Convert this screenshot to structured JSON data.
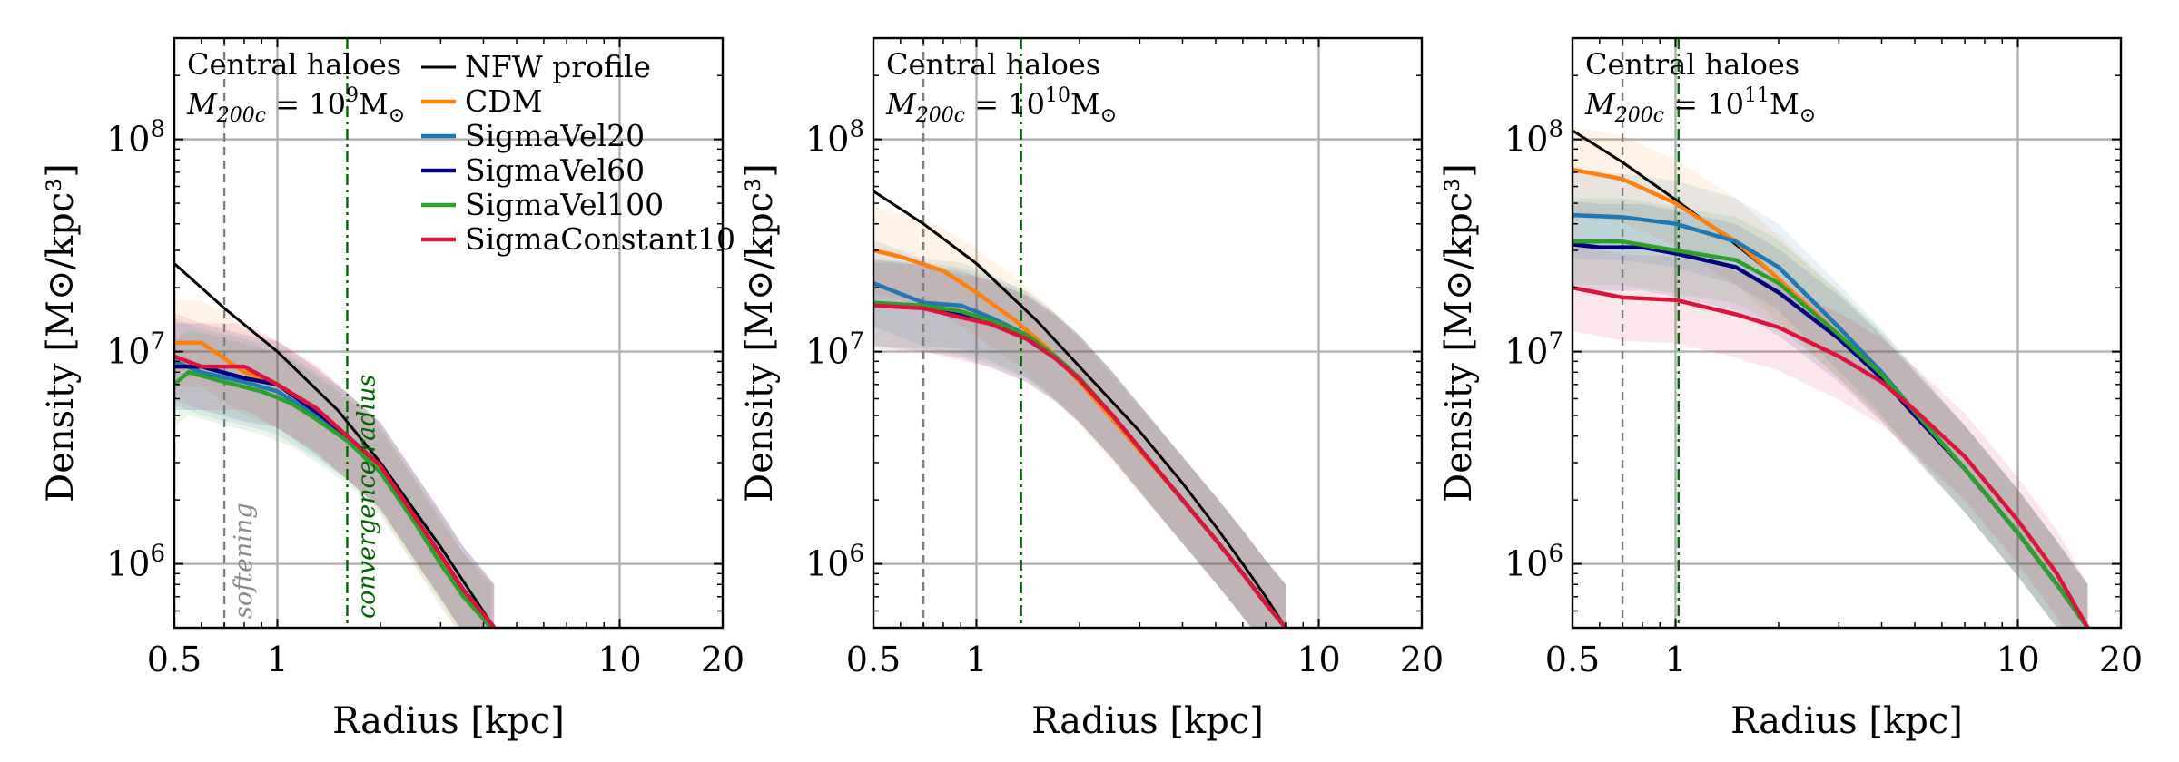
{
  "chart_data": [
    {
      "type": "line",
      "annotation": {
        "line1": "Central haloes",
        "mass_prefix": "M",
        "mass_sub": "200c",
        "mass_eq": " = 10",
        "mass_exp": "9",
        "mass_unit": "M",
        "mass_unit_sym": "⊙"
      },
      "xlabel": "Radius [kpc]",
      "ylabel": "Density [M⊙/kpc³]",
      "xlim": [
        0.5,
        20
      ],
      "ylim": [
        500000,
        300000000
      ],
      "xticks": [
        {
          "v": 0.5,
          "label": "0.5"
        },
        {
          "v": 1,
          "label": "1"
        },
        {
          "v": 10,
          "label": "10"
        },
        {
          "v": 20,
          "label": "20"
        }
      ],
      "yticks": [
        {
          "v": 1000000,
          "base": "10",
          "exp": "6"
        },
        {
          "v": 10000000,
          "base": "10",
          "exp": "7"
        },
        {
          "v": 100000000,
          "base": "10",
          "exp": "8"
        }
      ],
      "grid": true,
      "softening_radius": 0.7,
      "softening_label": "softening",
      "convergence_radius": 1.6,
      "convergence_label": "convergence radius",
      "show_legend": true,
      "series": [
        {
          "name": "NFW profile",
          "color": "#000000",
          "x": [
            0.5,
            0.7,
            1.0,
            1.5,
            2.0,
            3.0,
            4.3
          ],
          "y": [
            26000000,
            16000000,
            10000000,
            5300000,
            3000000,
            1200000,
            500000
          ]
        },
        {
          "name": "CDM",
          "color": "#ff7f0e",
          "x": [
            0.5,
            0.6,
            0.8,
            1.0,
            1.3,
            1.6,
            2.0,
            2.5,
            3.0,
            3.5,
            4.0,
            4.3
          ],
          "y": [
            11000000,
            11000000,
            8000000,
            7000000,
            5300000,
            4000000,
            2800000,
            1600000,
            1050000,
            700000,
            560000,
            500000
          ]
        },
        {
          "name": "SigmaVel20",
          "color": "#1f77b4",
          "x": [
            0.5,
            0.6,
            0.8,
            1.0,
            1.3,
            1.6,
            2.0,
            2.5,
            3.0,
            3.5,
            4.0,
            4.3
          ],
          "y": [
            9000000,
            8000000,
            7200000,
            6500000,
            5000000,
            4000000,
            2900000,
            1700000,
            1100000,
            750000,
            580000,
            500000
          ]
        },
        {
          "name": "SigmaVel60",
          "color": "#000080",
          "x": [
            0.5,
            0.6,
            0.8,
            1.0,
            1.3,
            1.6,
            2.0,
            2.5,
            3.0,
            3.5,
            4.0,
            4.3
          ],
          "y": [
            8500000,
            8500000,
            7500000,
            7000000,
            5200000,
            4000000,
            2900000,
            1700000,
            1100000,
            750000,
            580000,
            500000
          ]
        },
        {
          "name": "SigmaVel100",
          "color": "#2ca02c",
          "x": [
            0.5,
            0.55,
            0.7,
            0.9,
            1.1,
            1.3,
            1.6,
            2.0,
            2.5,
            3.0,
            3.5,
            4.0,
            4.2
          ],
          "y": [
            7000000,
            8000000,
            7200000,
            6500000,
            5700000,
            4800000,
            3800000,
            2700000,
            1600000,
            1000000,
            700000,
            550000,
            500000
          ]
        },
        {
          "name": "SigmaConstant10",
          "color": "#dc143c",
          "x": [
            0.5,
            0.6,
            0.8,
            1.0,
            1.3,
            1.6,
            2.0,
            2.5,
            3.0,
            3.5,
            4.0,
            4.3
          ],
          "y": [
            9500000,
            8500000,
            8500000,
            7000000,
            5400000,
            4000000,
            2900000,
            1700000,
            1100000,
            750000,
            580000,
            500000
          ]
        }
      ]
    },
    {
      "type": "line",
      "annotation": {
        "line1": "Central haloes",
        "mass_prefix": "M",
        "mass_sub": "200c",
        "mass_eq": " = 10",
        "mass_exp": "10",
        "mass_unit": "M",
        "mass_unit_sym": "⊙"
      },
      "xlabel": "Radius [kpc]",
      "ylabel": "Density [M⊙/kpc³]",
      "xlim": [
        0.5,
        20
      ],
      "ylim": [
        500000,
        300000000
      ],
      "xticks": [
        {
          "v": 0.5,
          "label": "0.5"
        },
        {
          "v": 1,
          "label": "1"
        },
        {
          "v": 10,
          "label": "10"
        },
        {
          "v": 20,
          "label": "20"
        }
      ],
      "yticks": [
        {
          "v": 1000000,
          "base": "10",
          "exp": "6"
        },
        {
          "v": 10000000,
          "base": "10",
          "exp": "7"
        },
        {
          "v": 100000000,
          "base": "10",
          "exp": "8"
        }
      ],
      "grid": true,
      "softening_radius": 0.7,
      "softening_label": "",
      "convergence_radius": 1.35,
      "convergence_label": "",
      "show_legend": false,
      "series": [
        {
          "name": "NFW profile",
          "color": "#000000",
          "x": [
            0.5,
            0.7,
            1.0,
            1.5,
            2.0,
            3.0,
            4.0,
            5.0,
            6.0,
            7.0,
            8.0
          ],
          "y": [
            57000000,
            40000000,
            26000000,
            14000000,
            8500000,
            4200000,
            2400000,
            1500000,
            1000000,
            700000,
            500000
          ]
        },
        {
          "name": "CDM",
          "color": "#ff7f0e",
          "x": [
            0.5,
            0.6,
            0.8,
            1.0,
            1.3,
            1.6,
            2.0,
            2.5,
            3.0,
            4.0,
            5.0,
            6.0,
            7.0,
            8.0
          ],
          "y": [
            30000000,
            28000000,
            24000000,
            19000000,
            14000000,
            10500000,
            7200000,
            4800000,
            3400000,
            2000000,
            1300000,
            900000,
            650000,
            500000
          ]
        },
        {
          "name": "SigmaVel20",
          "color": "#1f77b4",
          "x": [
            0.5,
            0.7,
            0.9,
            1.1,
            1.4,
            1.7,
            2.0,
            2.5,
            3.0,
            4.0,
            5.0,
            6.0,
            7.0,
            8.0
          ],
          "y": [
            21000000,
            17000000,
            16500000,
            14500000,
            12000000,
            9500000,
            7500000,
            5000000,
            3500000,
            2000000,
            1300000,
            900000,
            650000,
            500000
          ]
        },
        {
          "name": "SigmaVel60",
          "color": "#000080",
          "x": [
            0.5,
            0.7,
            0.9,
            1.1,
            1.4,
            1.7,
            2.0,
            2.5,
            3.0,
            4.0,
            5.0,
            6.0,
            7.0,
            8.0
          ],
          "y": [
            17000000,
            16000000,
            15000000,
            13500000,
            11500000,
            9300000,
            7400000,
            5000000,
            3500000,
            2000000,
            1300000,
            900000,
            650000,
            500000
          ]
        },
        {
          "name": "SigmaVel100",
          "color": "#2ca02c",
          "x": [
            0.5,
            0.7,
            0.9,
            1.1,
            1.4,
            1.7,
            2.0,
            2.5,
            3.0,
            4.0,
            5.0,
            6.0,
            7.0,
            8.0
          ],
          "y": [
            17000000,
            16500000,
            15500000,
            14000000,
            12000000,
            9500000,
            7500000,
            5000000,
            3500000,
            2000000,
            1300000,
            900000,
            650000,
            500000
          ]
        },
        {
          "name": "SigmaConstant10",
          "color": "#dc143c",
          "x": [
            0.5,
            0.7,
            0.9,
            1.1,
            1.4,
            1.7,
            2.0,
            2.5,
            3.0,
            4.0,
            5.0,
            6.0,
            7.0,
            8.0
          ],
          "y": [
            16500000,
            16000000,
            14500000,
            13500000,
            11500000,
            9300000,
            7400000,
            5000000,
            3500000,
            2000000,
            1300000,
            900000,
            650000,
            500000
          ]
        }
      ]
    },
    {
      "type": "line",
      "annotation": {
        "line1": "Central haloes",
        "mass_prefix": "M",
        "mass_sub": "200c",
        "mass_eq": " = 10",
        "mass_exp": "11",
        "mass_unit": "M",
        "mass_unit_sym": "⊙"
      },
      "xlabel": "Radius [kpc]",
      "ylabel": "Density [M⊙/kpc³]",
      "xlim": [
        0.5,
        20
      ],
      "ylim": [
        500000,
        300000000
      ],
      "xticks": [
        {
          "v": 0.5,
          "label": "0.5"
        },
        {
          "v": 1,
          "label": "1"
        },
        {
          "v": 10,
          "label": "10"
        },
        {
          "v": 20,
          "label": "20"
        }
      ],
      "yticks": [
        {
          "v": 1000000,
          "base": "10",
          "exp": "6"
        },
        {
          "v": 10000000,
          "base": "10",
          "exp": "7"
        },
        {
          "v": 100000000,
          "base": "10",
          "exp": "8"
        }
      ],
      "grid": true,
      "softening_radius": 0.7,
      "softening_label": "",
      "convergence_radius": 1.02,
      "convergence_label": "",
      "show_legend": false,
      "series": [
        {
          "name": "NFW profile",
          "color": "#000000",
          "x": [
            0.5,
            0.7,
            1.0,
            1.5,
            2.0,
            3.0,
            4.0,
            5.0,
            7.0,
            10.0,
            13.0,
            16.0
          ],
          "y": [
            110000000,
            78000000,
            52000000,
            32000000,
            22000000,
            12000000,
            7500000,
            5000000,
            2800000,
            1400000,
            800000,
            500000
          ]
        },
        {
          "name": "CDM",
          "color": "#ff7f0e",
          "x": [
            0.5,
            0.7,
            1.0,
            1.5,
            2.0,
            3.0,
            4.0,
            5.0,
            7.0,
            10.0,
            13.0,
            16.0
          ],
          "y": [
            72000000,
            65000000,
            50000000,
            33000000,
            22000000,
            12000000,
            7500000,
            5000000,
            2800000,
            1400000,
            800000,
            500000
          ]
        },
        {
          "name": "SigmaVel20",
          "color": "#1f77b4",
          "x": [
            0.5,
            0.7,
            1.0,
            1.5,
            2.0,
            3.0,
            4.0,
            5.0,
            7.0,
            10.0,
            13.0,
            16.0
          ],
          "y": [
            44000000,
            43000000,
            40000000,
            33000000,
            25000000,
            13000000,
            8000000,
            5200000,
            2800000,
            1400000,
            800000,
            500000
          ]
        },
        {
          "name": "SigmaVel60",
          "color": "#000080",
          "x": [
            0.5,
            0.6,
            0.8,
            1.0,
            1.5,
            2.0,
            3.0,
            4.0,
            5.0,
            7.0,
            10.0,
            13.0,
            16.0
          ],
          "y": [
            32000000,
            31000000,
            31000000,
            29000000,
            25000000,
            19000000,
            11500000,
            7500000,
            5000000,
            2800000,
            1400000,
            800000,
            500000
          ]
        },
        {
          "name": "SigmaVel100",
          "color": "#2ca02c",
          "x": [
            0.5,
            0.7,
            1.0,
            1.5,
            2.0,
            3.0,
            4.0,
            5.0,
            7.0,
            10.0,
            13.0,
            16.0
          ],
          "y": [
            33000000,
            33000000,
            30000000,
            27000000,
            21000000,
            12000000,
            7800000,
            5200000,
            2800000,
            1400000,
            800000,
            500000
          ]
        },
        {
          "name": "SigmaConstant10",
          "color": "#dc143c",
          "x": [
            0.5,
            0.7,
            1.0,
            1.5,
            2.0,
            3.0,
            4.0,
            5.0,
            7.0,
            10.0,
            13.0,
            16.0
          ],
          "y": [
            20000000,
            18000000,
            17500000,
            15000000,
            13000000,
            9500000,
            7200000,
            5300000,
            3200000,
            1600000,
            900000,
            500000
          ]
        }
      ]
    }
  ]
}
